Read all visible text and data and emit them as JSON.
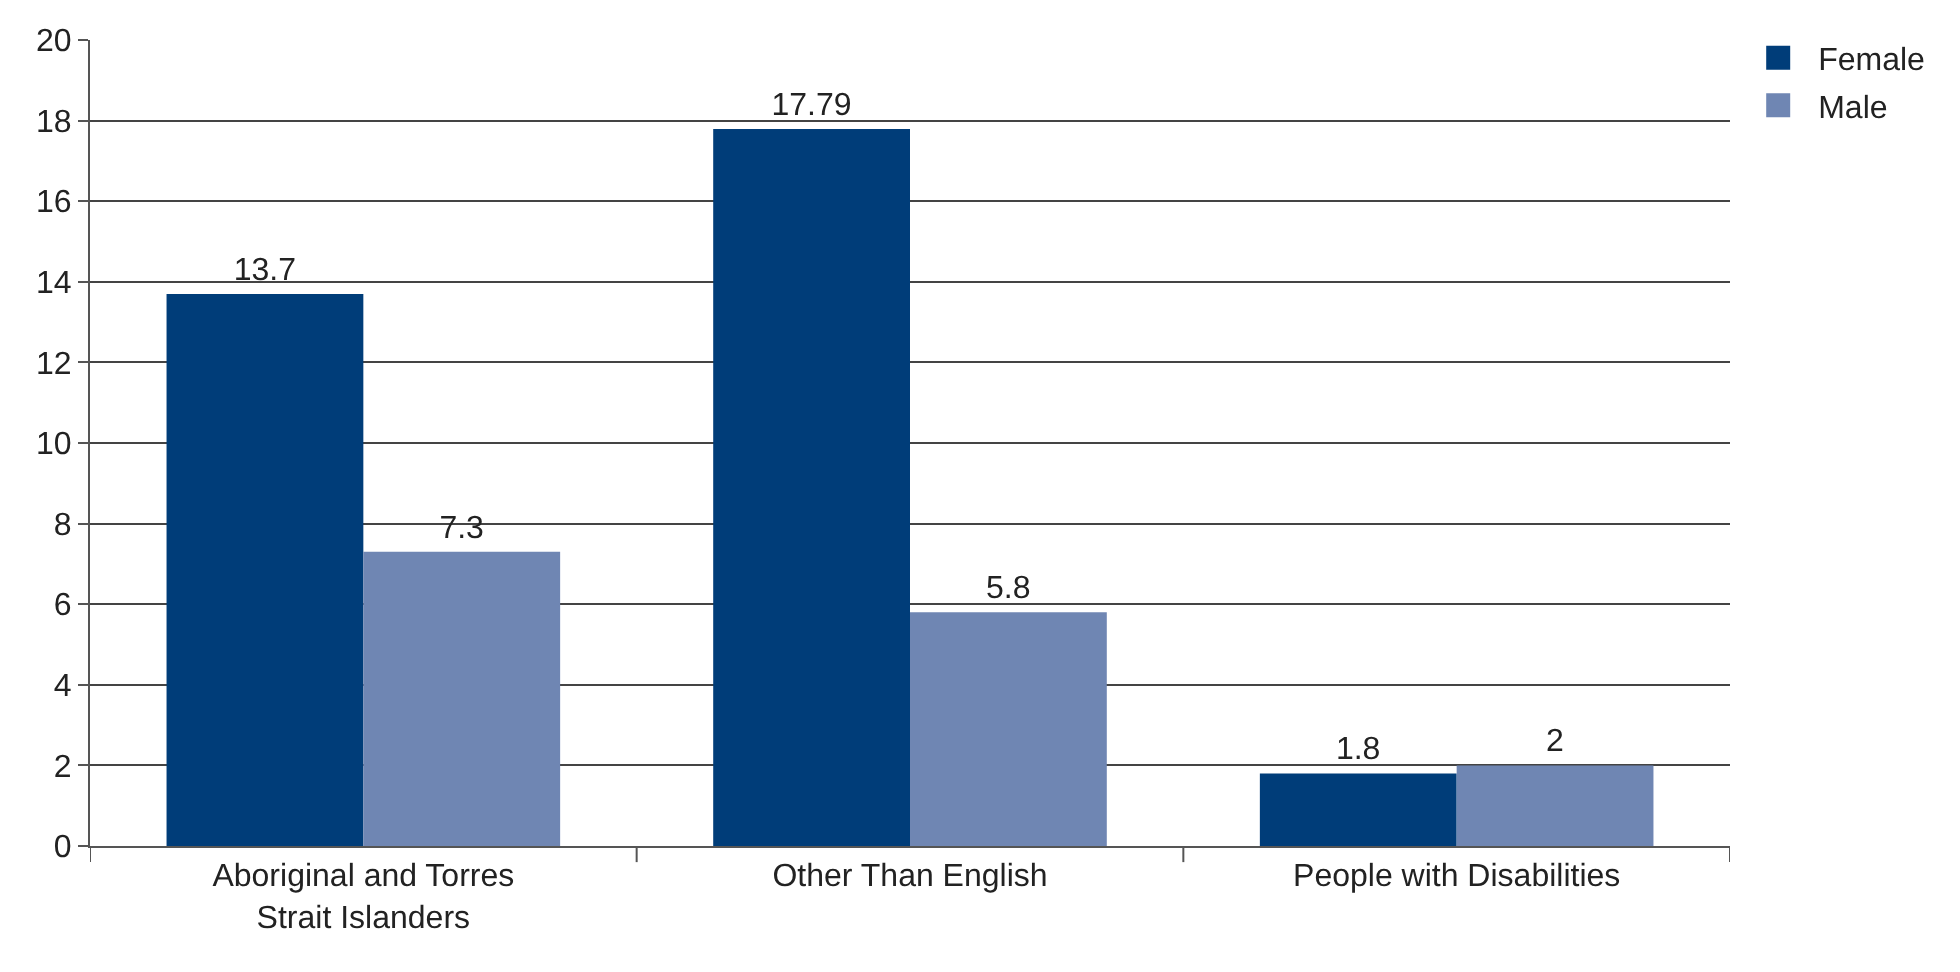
{
  "chart_data": {
    "type": "bar",
    "categories": [
      "Aboriginal and Torres\nStrait Islanders",
      "Other Than English",
      "People with Disabilities"
    ],
    "series": [
      {
        "name": "Female",
        "color": "#003d79",
        "values": [
          13.7,
          17.79,
          1.8
        ]
      },
      {
        "name": "Male",
        "color": "#6f86b3",
        "values": [
          7.3,
          5.8,
          2
        ]
      }
    ],
    "ylim": [
      0,
      20
    ],
    "yticks": [
      0,
      2,
      4,
      6,
      8,
      10,
      12,
      14,
      16,
      18,
      20
    ],
    "grid": "y",
    "legend": "top right",
    "data_labels": true
  }
}
